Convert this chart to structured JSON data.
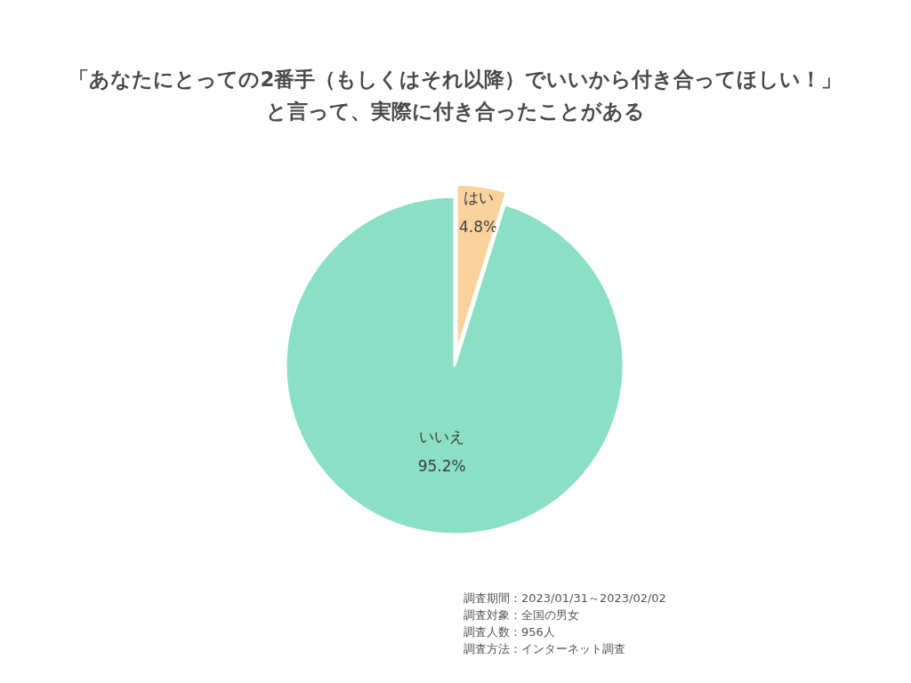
{
  "chart_data": {
    "type": "pie",
    "title": "「あなたにとっての2番手（もしくはそれ以降）でいいから付き合ってほしい！」と言って、実際に付き合ったことがある",
    "categories": [
      "はい",
      "いいえ"
    ],
    "values": [
      4.8,
      95.2
    ],
    "colors": [
      "#f9d39b",
      "#8adfc4"
    ],
    "value_labels": [
      "4.8%",
      "95.2%"
    ],
    "annotations": [
      "調査期間：2023/01/31～2023/02/02",
      "調査対象：全国の男女",
      "調査人数：956人",
      "調査方法：インターネット調査"
    ]
  }
}
